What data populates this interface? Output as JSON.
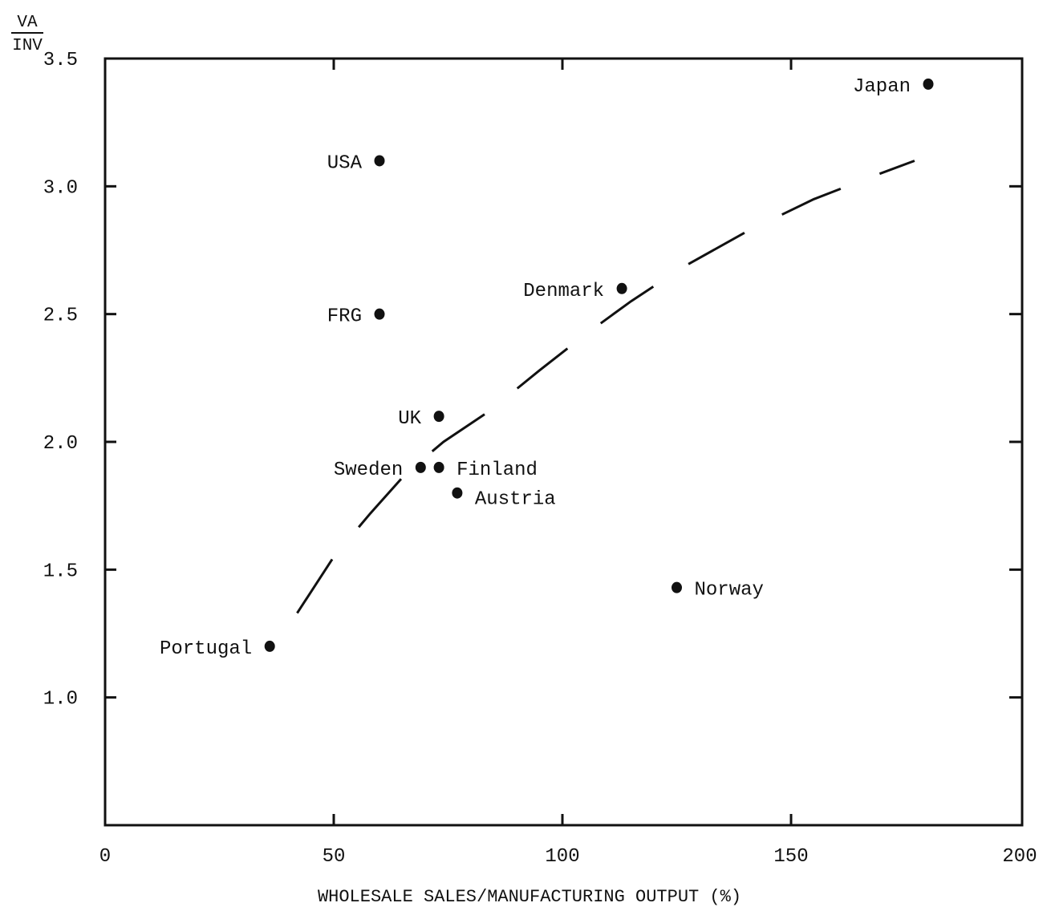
{
  "chart_data": {
    "type": "scatter",
    "title": "",
    "xlabel": "WHOLESALE SALES/MANUFACTURING OUTPUT (%)",
    "ylabel_numerator": "VA",
    "ylabel_denominator": "INV",
    "xlim": [
      0,
      200
    ],
    "ylim": [
      0.5,
      3.5
    ],
    "x_ticks": [
      0,
      50,
      100,
      150,
      200
    ],
    "x_tick_labels": [
      "0",
      "50",
      "100",
      "150",
      "200"
    ],
    "y_ticks": [
      1.0,
      1.5,
      2.0,
      2.5,
      3.0,
      3.5
    ],
    "y_tick_labels": [
      "1.0",
      "1.5",
      "2.0",
      "2.5",
      "3.0",
      "3.5"
    ],
    "grid": false,
    "points": [
      {
        "label": "Japan",
        "x": 180,
        "y": 3.4,
        "label_side": "left"
      },
      {
        "label": "USA",
        "x": 60,
        "y": 3.1,
        "label_side": "left"
      },
      {
        "label": "FRG",
        "x": 60,
        "y": 2.5,
        "label_side": "left"
      },
      {
        "label": "Denmark",
        "x": 113,
        "y": 2.6,
        "label_side": "left"
      },
      {
        "label": "UK",
        "x": 73,
        "y": 2.1,
        "label_side": "left"
      },
      {
        "label": "Sweden",
        "x": 69,
        "y": 1.9,
        "label_side": "left"
      },
      {
        "label": "Finland",
        "x": 73,
        "y": 1.9,
        "label_side": "right"
      },
      {
        "label": "Austria",
        "x": 77,
        "y": 1.8,
        "label_side": "right-below"
      },
      {
        "label": "Norway",
        "x": 125,
        "y": 1.43,
        "label_side": "right"
      },
      {
        "label": "Portugal",
        "x": 36,
        "y": 1.2,
        "label_side": "left"
      }
    ],
    "trend_line": {
      "style": "dashed",
      "x": [
        42,
        50,
        58,
        66,
        74,
        84,
        95,
        105,
        115,
        126,
        140,
        155,
        168,
        177
      ],
      "y": [
        1.33,
        1.55,
        1.72,
        1.88,
        2.0,
        2.12,
        2.28,
        2.42,
        2.55,
        2.68,
        2.82,
        2.95,
        3.04,
        3.1
      ]
    }
  }
}
